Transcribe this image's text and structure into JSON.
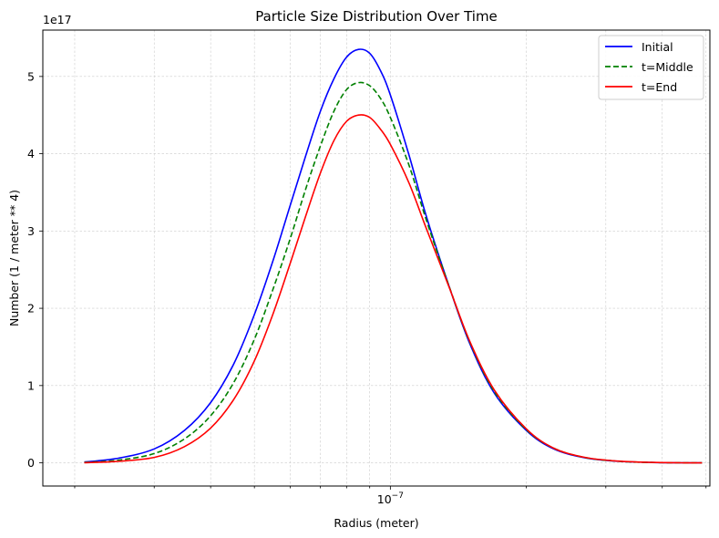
{
  "chart_data": {
    "type": "line",
    "title": "Particle Size Distribution Over Time",
    "xlabel": "Radius (meter)",
    "ylabel": "Number (1 / meter ** 4)",
    "x_scale": "log",
    "xlim": [
      1.7e-08,
      5.1e-07
    ],
    "ylim": [
      -3e+16,
      5.6e+17
    ],
    "x_tick_label": "10",
    "x_tick_exponent": "−7",
    "y_ticks": [
      "0",
      "1",
      "2",
      "3",
      "4",
      "5"
    ],
    "y_offset_label": "1e17",
    "grid": true,
    "legend_position": "top-right",
    "series": [
      {
        "name": "Initial",
        "color": "#0000ff",
        "dash": "solid",
        "x": [
          2.1e-08,
          2.5e-08,
          3e-08,
          3.5e-08,
          4e-08,
          4.5e-08,
          5e-08,
          5.5e-08,
          6e-08,
          6.5e-08,
          7e-08,
          7.5e-08,
          8e-08,
          8.5e-08,
          9e-08,
          9.5e-08,
          1e-07,
          1.1e-07,
          1.2e-07,
          1.35e-07,
          1.5e-07,
          1.7e-07,
          2e-07,
          2.3e-07,
          2.7e-07,
          3.2e-07,
          3.8e-07,
          4.4e-07,
          4.9e-07
        ],
        "y": [
          1000000000000000.0,
          6000000000000000.0,
          1.8e+16,
          4.2e+16,
          7.8e+16,
          1.28e+17,
          1.92e+17,
          2.62e+17,
          3.33e+17,
          3.98e+17,
          4.55e+17,
          4.97e+17,
          5.25e+17,
          5.35e+17,
          5.3e+17,
          5.08e+17,
          4.76e+17,
          3.98e+17,
          3.2e+17,
          2.28e+17,
          1.54e+17,
          9e+16,
          4.2e+16,
          1.8e+16,
          6500000000000000.0,
          2000000000000000.0,
          500000000000000.0,
          100000000000000.0,
          0.0
        ]
      },
      {
        "name": "t=Middle",
        "color": "#008000",
        "dash": "dashed",
        "x": [
          2.1e-08,
          2.5e-08,
          3e-08,
          3.5e-08,
          4e-08,
          4.5e-08,
          5e-08,
          5.5e-08,
          6e-08,
          6.5e-08,
          7e-08,
          7.5e-08,
          8e-08,
          8.5e-08,
          9e-08,
          9.5e-08,
          1e-07,
          1.1e-07,
          1.2e-07,
          1.35e-07,
          1.5e-07,
          1.7e-07,
          2e-07,
          2.3e-07,
          2.7e-07,
          3.2e-07,
          3.8e-07,
          4.4e-07,
          4.9e-07
        ],
        "y": [
          500000000000000.0,
          3500000000000000.0,
          1.2e+16,
          3.1e+16,
          6.1e+16,
          1.04e+17,
          1.6e+17,
          2.25e+17,
          2.9e+17,
          3.55e+17,
          4.1e+17,
          4.55e+17,
          4.83e+17,
          4.92e+17,
          4.88e+17,
          4.72e+17,
          4.47e+17,
          3.85e+17,
          3.15e+17,
          2.28e+17,
          1.56e+17,
          9.2e+16,
          4.3e+16,
          1.9e+16,
          6800000000000000.0,
          2100000000000000.0,
          500000000000000.0,
          100000000000000.0,
          0.0
        ]
      },
      {
        "name": "t=End",
        "color": "#ff0000",
        "dash": "solid",
        "x": [
          2.1e-08,
          2.5e-08,
          3e-08,
          3.5e-08,
          4e-08,
          4.5e-08,
          5e-08,
          5.5e-08,
          6e-08,
          6.5e-08,
          7e-08,
          7.5e-08,
          8e-08,
          8.5e-08,
          9e-08,
          9.5e-08,
          1e-07,
          1.1e-07,
          1.2e-07,
          1.35e-07,
          1.5e-07,
          1.7e-07,
          2e-07,
          2.3e-07,
          2.7e-07,
          3.2e-07,
          3.8e-07,
          4.4e-07,
          4.9e-07
        ],
        "y": [
          200000000000000.0,
          2000000000000000.0,
          7000000000000000.0,
          2.1e+16,
          4.5e+16,
          8.2e+16,
          1.32e+17,
          1.93e+17,
          2.58e+17,
          3.2e+17,
          3.75e+17,
          4.17e+17,
          4.42e+17,
          4.5e+17,
          4.47e+17,
          4.32e+17,
          4.12e+17,
          3.62e+17,
          3.04e+17,
          2.27e+17,
          1.57e+17,
          9.4e+16,
          4.4e+16,
          1.9e+16,
          7000000000000000.0,
          2200000000000000.0,
          600000000000000.0,
          100000000000000.0,
          0.0
        ]
      }
    ]
  }
}
